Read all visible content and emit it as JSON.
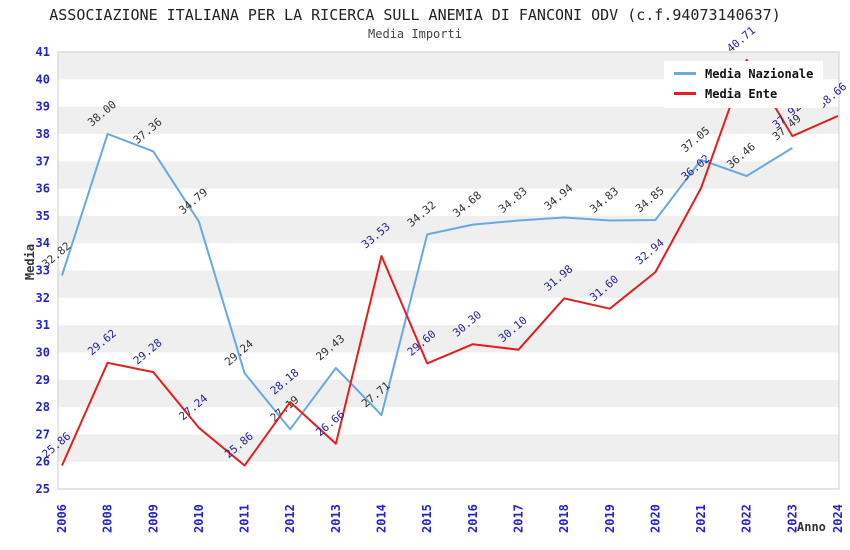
{
  "header": {
    "title": "ASSOCIAZIONE ITALIANA PER LA RICERCA SULL ANEMIA DI FANCONI ODV (c.f.94073140637)",
    "subtitle": "Media Importi"
  },
  "legend": {
    "position": "top-right",
    "items": [
      {
        "label": "Media Nazionale",
        "color": "#6aa8e0"
      },
      {
        "label": "Media Ente",
        "color": "#e02020"
      }
    ]
  },
  "axes": {
    "x_title": "Anno",
    "y_title": "Media"
  },
  "chart_data": {
    "type": "line",
    "title": "ASSOCIAZIONE ITALIANA PER LA RICERCA SULL ANEMIA DI FANCONI ODV (c.f.94073140637)",
    "subtitle": "Media Importi",
    "xlabel": "Anno",
    "ylabel": "Media",
    "categories": [
      "2006",
      "2008",
      "2009",
      "2010",
      "2011",
      "2012",
      "2013",
      "2014",
      "2015",
      "2016",
      "2017",
      "2018",
      "2019",
      "2020",
      "2021",
      "2022",
      "2023",
      "2024"
    ],
    "series": [
      {
        "name": "Media Nazionale",
        "color": "#6aa8e0",
        "label_color": "#333333",
        "values": [
          32.82,
          38.0,
          37.36,
          34.79,
          29.24,
          27.19,
          29.43,
          27.71,
          34.32,
          34.68,
          34.83,
          34.94,
          34.83,
          34.85,
          37.05,
          36.46,
          37.49,
          null
        ]
      },
      {
        "name": "Media Ente",
        "color": "#e02020",
        "label_color": "#242499",
        "values": [
          25.86,
          29.62,
          29.28,
          27.24,
          25.86,
          28.18,
          26.66,
          33.53,
          29.6,
          30.3,
          30.1,
          31.98,
          31.6,
          32.94,
          36.02,
          40.71,
          37.92,
          38.66
        ]
      }
    ],
    "ylim": [
      25,
      41
    ],
    "yticks": [
      25,
      26,
      27,
      28,
      29,
      30,
      31,
      32,
      33,
      34,
      35,
      36,
      37,
      38,
      39,
      40,
      41
    ],
    "ytick_step": 1,
    "grid": "horizontal-stripes",
    "stripe_color": "#efefef",
    "plot_background": "#ffffff",
    "border_color": "#cccccc",
    "tick_label_color": "#2424cc",
    "legend_position": "top-right"
  }
}
